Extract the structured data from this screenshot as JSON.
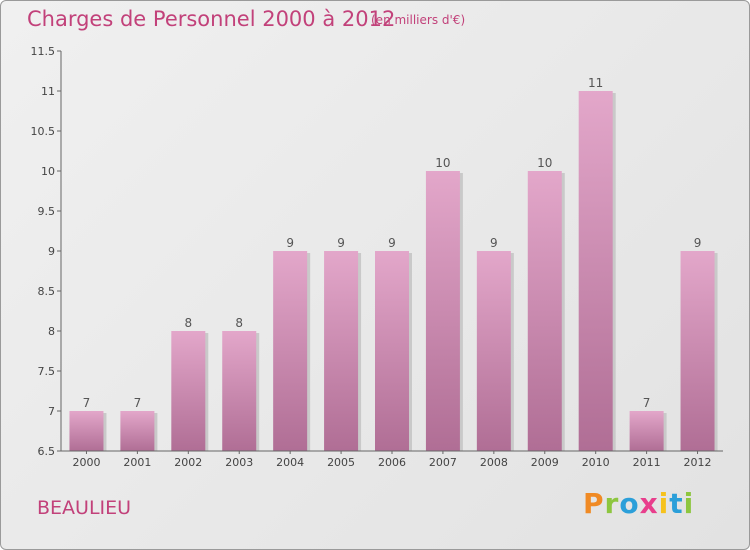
{
  "header": {
    "title": "Charges de Personnel 2000 à 2012",
    "subtitle": "(en milliers d'€)"
  },
  "commune": "BEAULIEU",
  "logo": {
    "letters": [
      "P",
      "r",
      "o",
      "x",
      "i",
      "t",
      "i"
    ],
    "colors": [
      "#f08a24",
      "#8dc63f",
      "#2b9fd9",
      "#e83e8c",
      "#f6c21c",
      "#2b9fd9",
      "#8dc63f"
    ]
  },
  "colors": {
    "accent": "#c2417a",
    "bar_top": "#e3a7ca",
    "bar_bottom": "#b06e95"
  },
  "chart_data": {
    "type": "bar",
    "title": "Charges de Personnel 2000 à 2012",
    "subtitle": "(en milliers d'€)",
    "categories": [
      "2000",
      "2001",
      "2002",
      "2003",
      "2004",
      "2005",
      "2006",
      "2007",
      "2008",
      "2009",
      "2010",
      "2011",
      "2012"
    ],
    "values": [
      7,
      7,
      8,
      8,
      9,
      9,
      9,
      10,
      9,
      10,
      11,
      7,
      9
    ],
    "data_labels": [
      "7",
      "7",
      "8",
      "8",
      "9",
      "9",
      "9",
      "10",
      "9",
      "10",
      "11",
      "7",
      "9"
    ],
    "ylim": [
      6.5,
      11.5
    ],
    "yticks": [
      6.5,
      7,
      7.5,
      8,
      8.5,
      9,
      9.5,
      10,
      10.5,
      11,
      11.5
    ],
    "ytick_labels": [
      "6.5",
      "7",
      "7.5",
      "8",
      "8.5",
      "9",
      "9.5",
      "10",
      "10.5",
      "11",
      "11.5"
    ],
    "grid": false,
    "legend": "none"
  }
}
